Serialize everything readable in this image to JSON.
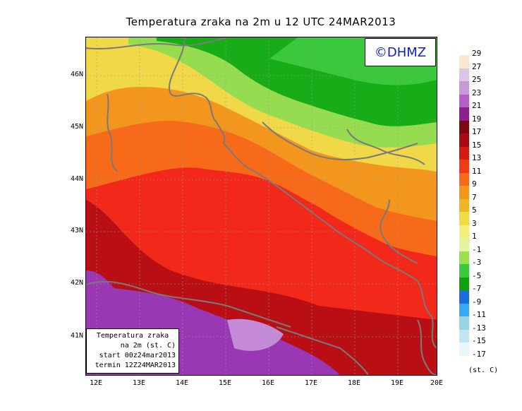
{
  "title": "Temperatura zraka na 2m u 12 UTC 24MAR2013",
  "copyright": "©DHMZ",
  "info_box": {
    "line1": "Temperatura zraka",
    "line2": "na 2m (st. C)",
    "line3": "start 00z24mar2013",
    "line4": "termin 12Z24MAR2013"
  },
  "lat_labels": [
    "46N",
    "45N",
    "44N",
    "43N",
    "42N",
    "41N"
  ],
  "lon_labels": [
    "12E",
    "13E",
    "14E",
    "15E",
    "16E",
    "17E",
    "18E",
    "19E",
    "20E"
  ],
  "legend": {
    "labels": [
      "29",
      "27",
      "25",
      "23",
      "21",
      "19",
      "17",
      "15",
      "13",
      "11",
      "9",
      "7",
      "5",
      "3",
      "1",
      "-1",
      "-3",
      "-5",
      "-7",
      "-9",
      "-11",
      "-13",
      "-15",
      "-17"
    ],
    "colors": [
      "#fbe6d2",
      "#dcc6e8",
      "#c79ad8",
      "#b35fc8",
      "#8b2090",
      "#7a0a10",
      "#a80a14",
      "#d81812",
      "#f23a14",
      "#f66a1a",
      "#f3961e",
      "#f0b626",
      "#f0dc46",
      "#f0f07a",
      "#dff5a0",
      "#9ae050",
      "#3cc83c",
      "#12a012",
      "#1c6cdc",
      "#38a8f0",
      "#9cd2e6",
      "#c4e6f2",
      "#e8f8fa",
      "#ffffff"
    ],
    "unit": "(st. C)"
  },
  "map_colors": {
    "sea_red": "#f2281a",
    "dark_red": "#b80e14",
    "purple": "#9a38b4",
    "orange": "#f3961e",
    "yellow": "#f0d848",
    "green": "#18ad18",
    "light_green": "#96dc50",
    "land_outline": "#7a7a7a"
  }
}
